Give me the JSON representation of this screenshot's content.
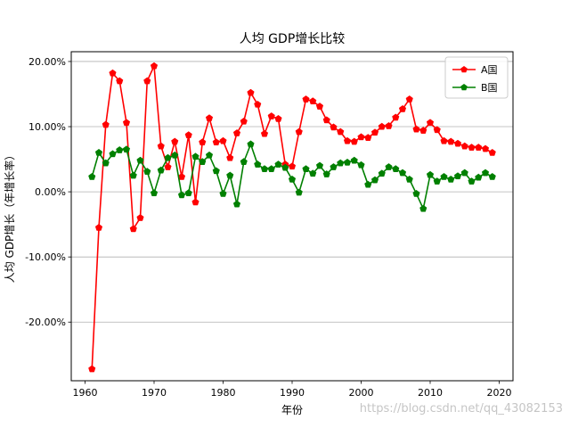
{
  "chart_data": {
    "type": "line",
    "title": "人均 GDP增长比较",
    "xlabel": "年份",
    "ylabel": "人均 GDP增长（年增长率）",
    "xlim": [
      1958,
      2022
    ],
    "ylim": [
      -0.29,
      0.215
    ],
    "x_ticks": [
      1960,
      1970,
      1980,
      1990,
      2000,
      2010,
      2020
    ],
    "y_ticks": [
      -0.2,
      -0.1,
      0.0,
      0.1,
      0.2
    ],
    "y_tick_labels": [
      "-20.00%",
      "-10.00%",
      "0.00%",
      "10.00%",
      "20.00%"
    ],
    "grid": "horizontal",
    "legend_position": "top-right",
    "x": [
      1961,
      1962,
      1963,
      1964,
      1965,
      1966,
      1967,
      1968,
      1969,
      1970,
      1971,
      1972,
      1973,
      1974,
      1975,
      1976,
      1977,
      1978,
      1979,
      1980,
      1981,
      1982,
      1983,
      1984,
      1985,
      1986,
      1987,
      1988,
      1989,
      1990,
      1991,
      1992,
      1993,
      1994,
      1995,
      1996,
      1997,
      1998,
      1999,
      2000,
      2001,
      2002,
      2003,
      2004,
      2005,
      2006,
      2007,
      2008,
      2009,
      2010,
      2011,
      2012,
      2013,
      2014,
      2015,
      2016,
      2017,
      2018,
      2019
    ],
    "series": [
      {
        "name": "A国",
        "color": "#ff0000",
        "values": [
          -0.272,
          -0.055,
          0.103,
          0.182,
          0.17,
          0.106,
          -0.057,
          -0.04,
          0.17,
          0.193,
          0.07,
          0.038,
          0.077,
          0.023,
          0.087,
          -0.016,
          0.076,
          0.113,
          0.076,
          0.078,
          0.052,
          0.09,
          0.108,
          0.152,
          0.134,
          0.089,
          0.116,
          0.112,
          0.042,
          0.039,
          0.092,
          0.142,
          0.139,
          0.131,
          0.11,
          0.099,
          0.092,
          0.078,
          0.077,
          0.084,
          0.083,
          0.091,
          0.1,
          0.101,
          0.114,
          0.127,
          0.142,
          0.096,
          0.094,
          0.106,
          0.095,
          0.078,
          0.077,
          0.074,
          0.07,
          0.068,
          0.068,
          0.066,
          0.06
        ]
      },
      {
        "name": "B国",
        "color": "#008000",
        "values": [
          0.023,
          0.06,
          0.044,
          0.058,
          0.064,
          0.065,
          0.025,
          0.048,
          0.031,
          -0.002,
          0.033,
          0.052,
          0.056,
          -0.005,
          -0.002,
          0.054,
          0.046,
          0.056,
          0.032,
          -0.003,
          0.025,
          -0.019,
          0.046,
          0.073,
          0.042,
          0.035,
          0.035,
          0.042,
          0.037,
          0.019,
          -0.001,
          0.035,
          0.028,
          0.04,
          0.027,
          0.038,
          0.044,
          0.045,
          0.048,
          0.041,
          0.011,
          0.018,
          0.028,
          0.038,
          0.035,
          0.029,
          0.019,
          -0.003,
          -0.026,
          0.026,
          0.016,
          0.023,
          0.019,
          0.024,
          0.029,
          0.016,
          0.022,
          0.029,
          0.023
        ]
      }
    ]
  },
  "watermark": "https://blog.csdn.net/qq_43082153"
}
